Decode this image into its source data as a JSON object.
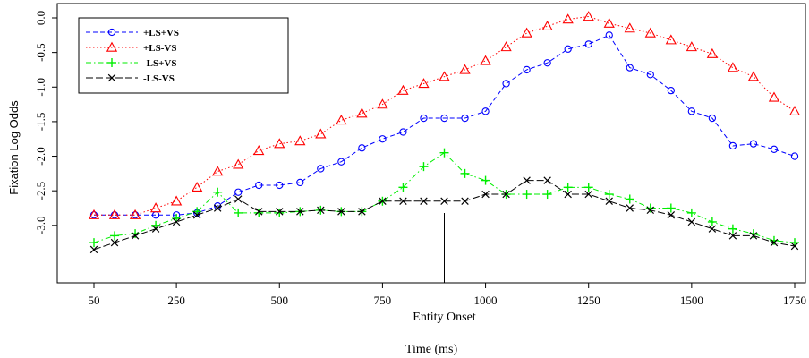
{
  "chart_data": {
    "type": "line",
    "title": "",
    "xlabel": "Time (ms)",
    "ylabel": "Fixation Log Odds",
    "annotation": "Entity Onset",
    "xlim": [
      50,
      1750
    ],
    "ylim": [
      -3.3,
      0.0
    ],
    "x_ticks": [
      50,
      250,
      500,
      750,
      1000,
      1250,
      1500,
      1750
    ],
    "x_tick_labels": [
      "50",
      "250",
      "500",
      "750",
      "1000",
      "1250",
      "1500",
      "1750"
    ],
    "y_ticks": [
      0.0,
      -0.5,
      -1.0,
      -1.5,
      -2.0,
      -2.5,
      -3.0
    ],
    "y_tick_labels": [
      "0.0",
      "-0.5",
      "-1.0",
      "-1.5",
      "-2.0",
      "-2.5",
      "-3.0"
    ],
    "vertical_line_x": 900,
    "grid": false,
    "legend_position": "top-left",
    "x": [
      50,
      100,
      150,
      200,
      250,
      300,
      350,
      400,
      450,
      500,
      550,
      600,
      650,
      700,
      750,
      800,
      850,
      900,
      950,
      1000,
      1050,
      1100,
      1150,
      1200,
      1250,
      1300,
      1350,
      1400,
      1450,
      1500,
      1550,
      1600,
      1650,
      1700,
      1750
    ],
    "series": [
      {
        "name": "+LS+VS",
        "color": "#0000ff",
        "line": "dashed",
        "marker": "circle",
        "values": [
          -2.85,
          -2.85,
          -2.85,
          -2.85,
          -2.85,
          -2.82,
          -2.72,
          -2.52,
          -2.42,
          -2.42,
          -2.38,
          -2.18,
          -2.08,
          -1.88,
          -1.75,
          -1.65,
          -1.45,
          -1.45,
          -1.45,
          -1.35,
          -0.95,
          -0.75,
          -0.65,
          -0.45,
          -0.38,
          -0.25,
          -0.72,
          -0.82,
          -1.05,
          -1.35,
          -1.45,
          -1.85,
          -1.82,
          -1.9,
          -2.0
        ]
      },
      {
        "name": "+LS-VS",
        "color": "#ff0000",
        "line": "dotted",
        "marker": "triangle",
        "values": [
          -2.85,
          -2.85,
          -2.85,
          -2.75,
          -2.65,
          -2.45,
          -2.22,
          -2.12,
          -1.92,
          -1.82,
          -1.78,
          -1.68,
          -1.48,
          -1.38,
          -1.25,
          -1.05,
          -0.95,
          -0.85,
          -0.75,
          -0.62,
          -0.42,
          -0.22,
          -0.12,
          -0.02,
          0.02,
          -0.08,
          -0.15,
          -0.22,
          -0.32,
          -0.42,
          -0.52,
          -0.72,
          -0.85,
          -1.15,
          -1.35
        ]
      },
      {
        "name": "-LS+VS",
        "color": "#00ee00",
        "line": "dashdot",
        "marker": "plus",
        "values": [
          -3.25,
          -3.15,
          -3.12,
          -3.0,
          -2.9,
          -2.8,
          -2.52,
          -2.82,
          -2.82,
          -2.82,
          -2.8,
          -2.78,
          -2.8,
          -2.8,
          -2.65,
          -2.45,
          -2.15,
          -1.95,
          -2.25,
          -2.35,
          -2.55,
          -2.55,
          -2.55,
          -2.45,
          -2.45,
          -2.55,
          -2.62,
          -2.75,
          -2.75,
          -2.82,
          -2.95,
          -3.05,
          -3.12,
          -3.22,
          -3.25
        ]
      },
      {
        "name": "-LS-VS",
        "color": "#000000",
        "line": "longdash",
        "marker": "x",
        "values": [
          -3.35,
          -3.25,
          -3.15,
          -3.05,
          -2.95,
          -2.85,
          -2.75,
          -2.62,
          -2.8,
          -2.8,
          -2.8,
          -2.78,
          -2.8,
          -2.8,
          -2.65,
          -2.65,
          -2.65,
          -2.65,
          -2.65,
          -2.55,
          -2.55,
          -2.35,
          -2.35,
          -2.55,
          -2.55,
          -2.65,
          -2.75,
          -2.78,
          -2.85,
          -2.95,
          -3.05,
          -3.15,
          -3.15,
          -3.25,
          -3.3
        ]
      }
    ]
  }
}
